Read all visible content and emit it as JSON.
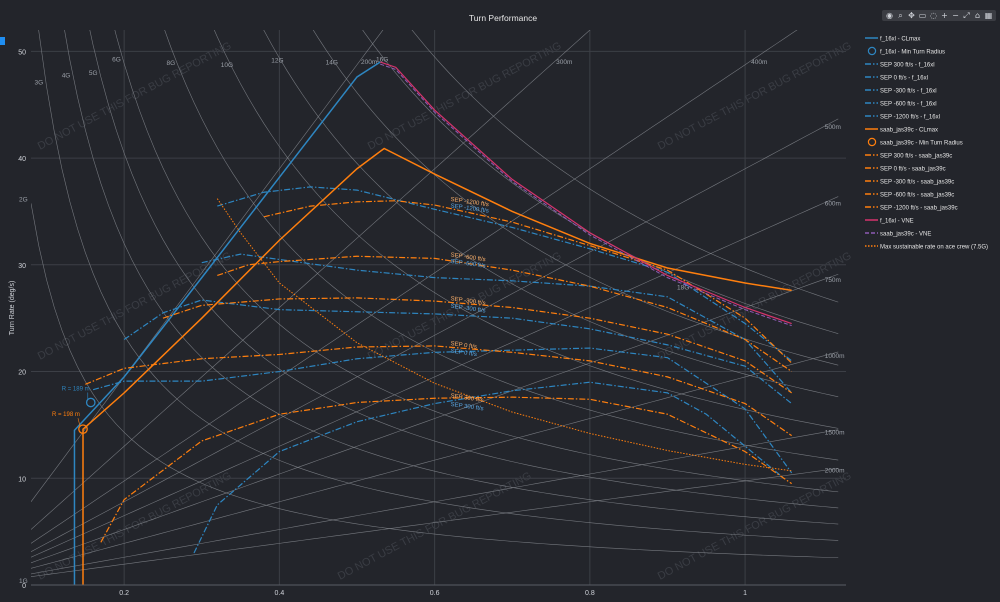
{
  "toolbar": {
    "buttons": [
      {
        "name": "camera-icon",
        "glyph": "◉"
      },
      {
        "name": "zoom-icon",
        "glyph": "⌕"
      },
      {
        "name": "pan-icon",
        "glyph": "✥"
      },
      {
        "name": "box-select-icon",
        "glyph": "▭"
      },
      {
        "name": "lasso-icon",
        "glyph": "◌"
      },
      {
        "name": "zoom-in-icon",
        "glyph": "+"
      },
      {
        "name": "zoom-out-icon",
        "glyph": "−"
      },
      {
        "name": "autoscale-icon",
        "glyph": "⤢"
      },
      {
        "name": "home-icon",
        "glyph": "⌂"
      },
      {
        "name": "plotly-logo-icon",
        "glyph": "▦"
      }
    ]
  },
  "chart_data": {
    "type": "line",
    "title": "Turn Performance",
    "xlabel": "",
    "ylabel": "Turn Rate (deg/s)",
    "xlim": [
      0.08,
      1.13
    ],
    "ylim": [
      0,
      52
    ],
    "x_ticks": [
      0.2,
      0.4,
      0.6,
      0.8,
      1
    ],
    "y_ticks": [
      0,
      10,
      20,
      30,
      40,
      50
    ],
    "grid": true,
    "legend_position": "right",
    "watermark": "DO NOT USE THIS FOR BUG REPORTING",
    "colors": {
      "f16": "#2e86c1",
      "saab": "#ff7f0e",
      "vne": "#d6336c",
      "bg": "#23252b",
      "grid": "#3c3f46",
      "guide": "#8a8d93"
    },
    "g_guides": {
      "labels": [
        "1G",
        "2G",
        "3G",
        "4G",
        "5G",
        "6G",
        "8G",
        "10G",
        "12G",
        "14G",
        "16G",
        "18G"
      ],
      "values": [
        1,
        2,
        3,
        4,
        5,
        6,
        8,
        10,
        12,
        14,
        16,
        18
      ]
    },
    "radius_guides": {
      "labels": [
        "200m",
        "300m",
        "400m",
        "500m",
        "600m",
        "750m",
        "1000m",
        "1500m",
        "2000m"
      ],
      "values": [
        200,
        300,
        400,
        500,
        600,
        750,
        1000,
        1500,
        2000
      ]
    },
    "min_radius_annotations": [
      {
        "label": "R = 198 m",
        "series": "saab",
        "x": 0.147,
        "y": 14.6
      },
      {
        "label": "R = 189 m",
        "series": "f16",
        "x": 0.157,
        "y": 17.1
      }
    ],
    "sep_annotations": [
      {
        "label": "SEP -1200 ft/s",
        "x": 0.62,
        "y": 35.8,
        "series": "saab"
      },
      {
        "label": "SEP -1200 ft/s",
        "x": 0.62,
        "y": 35.2,
        "series": "f16"
      },
      {
        "label": "SEP -600 ft/s",
        "x": 0.62,
        "y": 30.6,
        "series": "saab"
      },
      {
        "label": "SEP -600 ft/s",
        "x": 0.62,
        "y": 30.0,
        "series": "f16"
      },
      {
        "label": "SEP -300 ft/s",
        "x": 0.62,
        "y": 26.5,
        "series": "saab"
      },
      {
        "label": "SEP -300 ft/s",
        "x": 0.62,
        "y": 25.8,
        "series": "f16"
      },
      {
        "label": "SEP 0 ft/s",
        "x": 0.62,
        "y": 22.3,
        "series": "saab"
      },
      {
        "label": "SEP 0 ft/s",
        "x": 0.62,
        "y": 21.6,
        "series": "f16"
      },
      {
        "label": "SEP 300 ft/s",
        "x": 0.62,
        "y": 17.4,
        "series": "saab"
      },
      {
        "label": "SEP 300 ft/s",
        "x": 0.62,
        "y": 16.6,
        "series": "f16"
      }
    ],
    "series": [
      {
        "name": "f_16xl - CLmax",
        "key": "f16_clmax",
        "color": "#2e86c1",
        "dash": "solid",
        "width": 1.5,
        "x": [
          0.136,
          0.136,
          0.2,
          0.3,
          0.4,
          0.5,
          0.53
        ],
        "y": [
          0,
          14.5,
          19.5,
          28.8,
          38.2,
          47.6,
          49.0
        ]
      },
      {
        "name": "f_16xl - Min Turn Radius",
        "key": "f16_minr",
        "color": "#2e86c1",
        "marker": "circle",
        "x": [
          0.157
        ],
        "y": [
          17.1
        ]
      },
      {
        "name": "SEP 300 ft/s - f_16xl",
        "key": "f16_sep300",
        "color": "#2e86c1",
        "dash": "dashdot",
        "width": 1.2,
        "x": [
          0.29,
          0.32,
          0.4,
          0.5,
          0.6,
          0.7,
          0.8,
          0.9,
          0.95,
          1.0,
          1.05
        ],
        "y": [
          3,
          7.5,
          12.5,
          15.3,
          17,
          18.2,
          19.0,
          18.0,
          16.0,
          13.0,
          10.0
        ]
      },
      {
        "name": "SEP 0 ft/s - f_16xl",
        "key": "f16_sep0",
        "color": "#2e86c1",
        "dash": "dashdot",
        "width": 1.2,
        "x": [
          0.16,
          0.2,
          0.3,
          0.4,
          0.5,
          0.6,
          0.7,
          0.8,
          0.9,
          1.0,
          1.06
        ],
        "y": [
          18.3,
          19.1,
          19.1,
          20.0,
          21.2,
          21.8,
          22.0,
          22.2,
          21.3,
          16.5,
          10.5
        ]
      },
      {
        "name": "SEP -300 ft/s - f_16xl",
        "key": "f16_sepm300",
        "color": "#2e86c1",
        "dash": "dashdot",
        "width": 1.2,
        "x": [
          0.2,
          0.25,
          0.3,
          0.4,
          0.5,
          0.6,
          0.7,
          0.8,
          0.9,
          1.0,
          1.06
        ],
        "y": [
          23,
          25.5,
          26.7,
          25.8,
          25.6,
          25.4,
          25.0,
          24.0,
          22.5,
          20.5,
          17.0
        ]
      },
      {
        "name": "SEP -600 ft/s - f_16xl",
        "key": "f16_sepm600",
        "color": "#2e86c1",
        "dash": "dashdot",
        "width": 1.2,
        "x": [
          0.3,
          0.35,
          0.4,
          0.5,
          0.6,
          0.7,
          0.8,
          0.9,
          1.0,
          1.06
        ],
        "y": [
          30.2,
          31.0,
          30.5,
          29.5,
          28.8,
          28.5,
          28.0,
          27.0,
          23.0,
          18.0
        ]
      },
      {
        "name": "SEP -1200 ft/s - f_16xl",
        "key": "f16_sepm1200",
        "color": "#2e86c1",
        "dash": "dashdot",
        "width": 1.2,
        "x": [
          0.32,
          0.38,
          0.44,
          0.5,
          0.6,
          0.7,
          0.8,
          0.9,
          1.0,
          1.06
        ],
        "y": [
          35.5,
          36.8,
          37.3,
          37.0,
          35.2,
          33.5,
          31.5,
          29.3,
          24.5,
          21.0
        ]
      },
      {
        "name": "saab_jas39c - CLmax",
        "key": "saab_clmax",
        "color": "#ff7f0e",
        "dash": "solid",
        "width": 1.5,
        "x": [
          0.147,
          0.147,
          0.2,
          0.3,
          0.4,
          0.5,
          0.535,
          0.6,
          0.7,
          0.8,
          0.9,
          1.0,
          1.06
        ],
        "y": [
          0,
          14.6,
          18.0,
          25.0,
          32.3,
          39.0,
          40.9,
          38.5,
          35.0,
          32.0,
          29.7,
          28.3,
          27.6
        ]
      },
      {
        "name": "saab_jas39c - Min Turn Radius",
        "key": "saab_minr",
        "color": "#ff7f0e",
        "marker": "circle",
        "x": [
          0.147
        ],
        "y": [
          14.6
        ]
      },
      {
        "name": "SEP 300 ft/s - saab_jas39c",
        "key": "saab_sep300",
        "color": "#ff7f0e",
        "dash": "dashdot",
        "width": 1.2,
        "x": [
          0.17,
          0.2,
          0.3,
          0.4,
          0.5,
          0.6,
          0.7,
          0.8,
          0.9,
          1.0,
          1.06
        ],
        "y": [
          4,
          8,
          13.5,
          16,
          17.1,
          17.5,
          17.6,
          17.4,
          16.0,
          12.5,
          9.5
        ]
      },
      {
        "name": "SEP 0 ft/s - saab_jas39c",
        "key": "saab_sep0",
        "color": "#ff7f0e",
        "dash": "dashdot",
        "width": 1.2,
        "x": [
          0.15,
          0.2,
          0.3,
          0.4,
          0.5,
          0.6,
          0.7,
          0.8,
          0.9,
          1.0,
          1.06
        ],
        "y": [
          18.8,
          20.3,
          21.2,
          21.6,
          22.3,
          22.4,
          21.8,
          21.0,
          19.5,
          17.0,
          14.0
        ]
      },
      {
        "name": "SEP -300 ft/s - saab_jas39c",
        "key": "saab_sepm300",
        "color": "#ff7f0e",
        "dash": "dashdot",
        "width": 1.2,
        "x": [
          0.25,
          0.3,
          0.4,
          0.5,
          0.6,
          0.7,
          0.8,
          0.9,
          1.0,
          1.06
        ],
        "y": [
          25,
          26.2,
          26.8,
          26.9,
          26.6,
          26.0,
          25.0,
          23.5,
          21.0,
          18.0
        ]
      },
      {
        "name": "SEP -600 ft/s - saab_jas39c",
        "key": "saab_sepm600",
        "color": "#ff7f0e",
        "dash": "dashdot",
        "width": 1.2,
        "x": [
          0.32,
          0.36,
          0.4,
          0.5,
          0.6,
          0.7,
          0.8,
          0.9,
          1.0,
          1.06
        ],
        "y": [
          29.0,
          30.0,
          30.3,
          30.8,
          30.6,
          29.5,
          28.0,
          26.0,
          23.0,
          20.0
        ]
      },
      {
        "name": "SEP -1200 ft/s - saab_jas39c",
        "key": "saab_sepm1200",
        "color": "#ff7f0e",
        "dash": "dashdot",
        "width": 1.2,
        "x": [
          0.38,
          0.44,
          0.5,
          0.55,
          0.6,
          0.7,
          0.8,
          0.9,
          1.0,
          1.06
        ],
        "y": [
          34.5,
          35.5,
          35.9,
          36.0,
          35.6,
          34.0,
          31.8,
          29.5,
          25.0,
          20.8
        ]
      },
      {
        "name": "f_16xl - VNE",
        "key": "f16_vne",
        "color": "#d6336c",
        "dash": "solid",
        "width": 1.2,
        "x": [
          0.53,
          0.55,
          0.6,
          0.7,
          0.8,
          0.9,
          1.0,
          1.06
        ],
        "y": [
          49.0,
          48.5,
          44.5,
          38.0,
          33.0,
          29.0,
          26.0,
          24.5
        ]
      },
      {
        "name": "saab_jas39c - VNE",
        "key": "saab_vne",
        "color": "#8e5bb5",
        "dash": "dash",
        "width": 1.0,
        "x": [
          0.53,
          0.55,
          0.6,
          0.7,
          0.8,
          0.9,
          1.0,
          1.06
        ],
        "y": [
          48.8,
          48.3,
          44.3,
          37.8,
          32.8,
          28.8,
          25.8,
          24.3
        ]
      },
      {
        "name": "Max sustainable rate on ace crew (7.5G)",
        "key": "ace",
        "color": "#ff7f0e",
        "dash": "dot",
        "width": 1.0,
        "x": [
          0.32,
          0.35,
          0.4,
          0.5,
          0.6,
          0.7,
          0.8,
          0.9,
          1.0,
          1.06
        ],
        "y": [
          36.2,
          33.0,
          28.3,
          22.7,
          18.9,
          16.2,
          14.2,
          12.6,
          11.3,
          10.7
        ]
      }
    ]
  }
}
